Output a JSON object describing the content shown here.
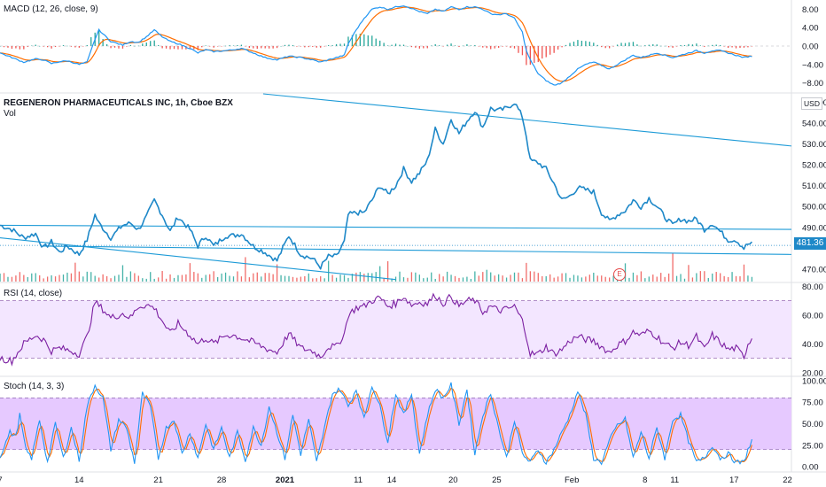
{
  "macd": {
    "label": "MACD (12, 26, close, 9)",
    "ticks": [
      {
        "v": 8,
        "t": "8.00"
      },
      {
        "v": 4,
        "t": "4.00"
      },
      {
        "v": 0,
        "t": "0.00"
      },
      {
        "v": -4,
        "t": "−4.00"
      },
      {
        "v": -8,
        "t": "−8.00"
      }
    ],
    "range": [
      -10,
      10
    ]
  },
  "price": {
    "title": "REGENERON PHARMACEUTICALS INC, 1h, Cboe BZX",
    "vol_label": "Vol",
    "currency": "USD",
    "last_price": "481.36",
    "earnings_marker": "E",
    "ticks": [
      {
        "v": 550,
        "t": "550.00"
      },
      {
        "v": 540,
        "t": "540.00"
      },
      {
        "v": 530,
        "t": "530.00"
      },
      {
        "v": 520,
        "t": "520.00"
      },
      {
        "v": 510,
        "t": "510.00"
      },
      {
        "v": 500,
        "t": "500.00"
      },
      {
        "v": 490,
        "t": "490.00"
      },
      {
        "v": 470,
        "t": "470.00"
      }
    ],
    "range": [
      464,
      554
    ]
  },
  "rsi": {
    "label": "RSI (14, close)",
    "ticks": [
      {
        "v": 80,
        "t": "80.00"
      },
      {
        "v": 60,
        "t": "60.00"
      },
      {
        "v": 40,
        "t": "40.00"
      },
      {
        "v": 20,
        "t": "20.00"
      }
    ],
    "range": [
      18,
      82
    ],
    "band": [
      30,
      70
    ]
  },
  "stoch": {
    "label": "Stoch (14, 3, 3)",
    "ticks": [
      {
        "v": 100,
        "t": "100.00"
      },
      {
        "v": 75,
        "t": "75.00"
      },
      {
        "v": 50,
        "t": "50.00"
      },
      {
        "v": 25,
        "t": "25.00"
      },
      {
        "v": 0,
        "t": "0.00"
      }
    ],
    "range": [
      -6,
      104
    ],
    "band": [
      20,
      80
    ]
  },
  "x_axis": {
    "labels": [
      {
        "t": "7",
        "i": 0
      },
      {
        "t": "14",
        "i": 40
      },
      {
        "t": "21",
        "i": 80
      },
      {
        "t": "28",
        "i": 112
      },
      {
        "t": "2021",
        "i": 144,
        "bold": true
      },
      {
        "t": "11",
        "i": 181
      },
      {
        "t": "14",
        "i": 198
      },
      {
        "t": "20",
        "i": 229
      },
      {
        "t": "25",
        "i": 251
      },
      {
        "t": "Feb",
        "i": 289
      },
      {
        "t": "8",
        "i": 326
      },
      {
        "t": "11",
        "i": 341
      },
      {
        "t": "17",
        "i": 371
      },
      {
        "t": "22",
        "i": 398
      }
    ]
  },
  "colors": {
    "price_line": "#1e88c8",
    "trend_line": "#1e9bd7",
    "macd_line": "#2196f3",
    "signal_line": "#ff6d00",
    "hist_pos": "#26a69a",
    "hist_neg": "#ef5350",
    "rsi_line": "#7b1fa2",
    "rsi_band": "#f3e6ff",
    "stoch_k": "#2196f3",
    "stoch_d": "#ff6d00",
    "stoch_band": "#e6c9ff",
    "vol_up": "#26a69a",
    "vol_down": "#ef5350"
  },
  "chart_data": {
    "type": "line",
    "x_range": [
      0,
      380
    ],
    "price_anchors": [
      [
        0,
        491
      ],
      [
        6,
        489
      ],
      [
        12,
        485
      ],
      [
        18,
        487
      ],
      [
        22,
        480
      ],
      [
        26,
        483
      ],
      [
        30,
        478
      ],
      [
        34,
        481
      ],
      [
        40,
        477
      ],
      [
        44,
        484
      ],
      [
        48,
        496
      ],
      [
        50,
        492
      ],
      [
        56,
        485
      ],
      [
        62,
        491
      ],
      [
        66,
        492
      ],
      [
        70,
        489
      ],
      [
        74,
        495
      ],
      [
        78,
        503
      ],
      [
        82,
        496
      ],
      [
        86,
        488
      ],
      [
        90,
        495
      ],
      [
        96,
        489
      ],
      [
        100,
        481
      ],
      [
        104,
        486
      ],
      [
        108,
        481
      ],
      [
        114,
        486
      ],
      [
        118,
        486
      ],
      [
        122,
        487
      ],
      [
        128,
        481
      ],
      [
        134,
        478
      ],
      [
        140,
        474
      ],
      [
        146,
        486
      ],
      [
        152,
        477
      ],
      [
        158,
        475
      ],
      [
        162,
        471
      ],
      [
        166,
        476
      ],
      [
        170,
        476
      ],
      [
        174,
        483
      ],
      [
        176,
        496
      ],
      [
        180,
        497
      ],
      [
        184,
        497
      ],
      [
        188,
        503
      ],
      [
        192,
        510
      ],
      [
        196,
        506
      ],
      [
        200,
        510
      ],
      [
        204,
        518
      ],
      [
        208,
        512
      ],
      [
        212,
        516
      ],
      [
        216,
        522
      ],
      [
        220,
        537
      ],
      [
        224,
        530
      ],
      [
        228,
        542
      ],
      [
        232,
        535
      ],
      [
        236,
        541
      ],
      [
        240,
        546
      ],
      [
        244,
        538
      ],
      [
        248,
        547
      ],
      [
        252,
        546
      ],
      [
        256,
        547
      ],
      [
        260,
        550
      ],
      [
        264,
        543
      ],
      [
        266,
        534
      ],
      [
        268,
        522
      ],
      [
        272,
        521
      ],
      [
        276,
        518
      ],
      [
        280,
        511
      ],
      [
        284,
        503
      ],
      [
        288,
        505
      ],
      [
        292,
        509
      ],
      [
        296,
        508
      ],
      [
        300,
        507
      ],
      [
        304,
        497
      ],
      [
        308,
        493
      ],
      [
        312,
        496
      ],
      [
        316,
        498
      ],
      [
        320,
        503
      ],
      [
        324,
        500
      ],
      [
        328,
        504
      ],
      [
        332,
        500
      ],
      [
        336,
        495
      ],
      [
        340,
        491
      ],
      [
        344,
        494
      ],
      [
        348,
        493
      ],
      [
        352,
        494
      ],
      [
        356,
        489
      ],
      [
        360,
        492
      ],
      [
        364,
        488
      ],
      [
        368,
        484
      ],
      [
        372,
        484
      ],
      [
        376,
        480
      ],
      [
        378,
        482
      ],
      [
        380,
        482
      ]
    ],
    "rsi_anchors": [
      [
        0,
        30
      ],
      [
        6,
        28
      ],
      [
        12,
        40
      ],
      [
        18,
        46
      ],
      [
        22,
        43
      ],
      [
        26,
        35
      ],
      [
        30,
        37
      ],
      [
        36,
        35
      ],
      [
        40,
        33
      ],
      [
        44,
        45
      ],
      [
        48,
        69
      ],
      [
        52,
        64
      ],
      [
        56,
        58
      ],
      [
        62,
        61
      ],
      [
        66,
        58
      ],
      [
        70,
        66
      ],
      [
        74,
        67
      ],
      [
        78,
        65
      ],
      [
        82,
        56
      ],
      [
        86,
        47
      ],
      [
        90,
        54
      ],
      [
        96,
        46
      ],
      [
        100,
        40
      ],
      [
        104,
        44
      ],
      [
        108,
        40
      ],
      [
        114,
        46
      ],
      [
        118,
        46
      ],
      [
        122,
        44
      ],
      [
        128,
        41
      ],
      [
        134,
        37
      ],
      [
        140,
        34
      ],
      [
        146,
        47
      ],
      [
        152,
        37
      ],
      [
        158,
        35
      ],
      [
        162,
        31
      ],
      [
        166,
        38
      ],
      [
        170,
        38
      ],
      [
        174,
        47
      ],
      [
        176,
        60
      ],
      [
        180,
        65
      ],
      [
        184,
        66
      ],
      [
        188,
        70
      ],
      [
        192,
        72
      ],
      [
        196,
        66
      ],
      [
        200,
        68
      ],
      [
        204,
        73
      ],
      [
        208,
        67
      ],
      [
        212,
        69
      ],
      [
        216,
        68
      ],
      [
        220,
        74
      ],
      [
        224,
        68
      ],
      [
        228,
        73
      ],
      [
        232,
        66
      ],
      [
        236,
        70
      ],
      [
        240,
        70
      ],
      [
        244,
        62
      ],
      [
        248,
        66
      ],
      [
        252,
        63
      ],
      [
        256,
        64
      ],
      [
        260,
        66
      ],
      [
        264,
        56
      ],
      [
        266,
        46
      ],
      [
        268,
        33
      ],
      [
        272,
        33
      ],
      [
        276,
        38
      ],
      [
        280,
        33
      ],
      [
        284,
        36
      ],
      [
        288,
        42
      ],
      [
        292,
        45
      ],
      [
        296,
        43
      ],
      [
        300,
        42
      ],
      [
        304,
        38
      ],
      [
        308,
        34
      ],
      [
        312,
        39
      ],
      [
        316,
        42
      ],
      [
        320,
        48
      ],
      [
        324,
        46
      ],
      [
        328,
        49
      ],
      [
        332,
        45
      ],
      [
        336,
        40
      ],
      [
        340,
        37
      ],
      [
        344,
        41
      ],
      [
        348,
        39
      ],
      [
        352,
        45
      ],
      [
        356,
        36
      ],
      [
        360,
        46
      ],
      [
        364,
        41
      ],
      [
        368,
        36
      ],
      [
        372,
        37
      ],
      [
        376,
        31
      ],
      [
        378,
        40
      ],
      [
        380,
        44
      ]
    ],
    "stoch_k_anchors": [
      [
        0,
        12
      ],
      [
        5,
        40
      ],
      [
        8,
        35
      ],
      [
        10,
        60
      ],
      [
        13,
        20
      ],
      [
        16,
        10
      ],
      [
        20,
        55
      ],
      [
        24,
        5
      ],
      [
        28,
        50
      ],
      [
        32,
        10
      ],
      [
        36,
        45
      ],
      [
        40,
        8
      ],
      [
        44,
        70
      ],
      [
        48,
        95
      ],
      [
        52,
        80
      ],
      [
        56,
        20
      ],
      [
        60,
        55
      ],
      [
        64,
        45
      ],
      [
        68,
        5
      ],
      [
        72,
        85
      ],
      [
        76,
        70
      ],
      [
        80,
        10
      ],
      [
        84,
        45
      ],
      [
        88,
        55
      ],
      [
        92,
        15
      ],
      [
        96,
        40
      ],
      [
        100,
        10
      ],
      [
        104,
        50
      ],
      [
        108,
        20
      ],
      [
        112,
        45
      ],
      [
        116,
        10
      ],
      [
        120,
        40
      ],
      [
        124,
        8
      ],
      [
        128,
        45
      ],
      [
        132,
        25
      ],
      [
        136,
        70
      ],
      [
        140,
        40
      ],
      [
        144,
        10
      ],
      [
        148,
        60
      ],
      [
        152,
        15
      ],
      [
        156,
        55
      ],
      [
        160,
        5
      ],
      [
        164,
        45
      ],
      [
        168,
        85
      ],
      [
        172,
        90
      ],
      [
        176,
        70
      ],
      [
        180,
        90
      ],
      [
        184,
        55
      ],
      [
        188,
        95
      ],
      [
        192,
        70
      ],
      [
        196,
        30
      ],
      [
        200,
        85
      ],
      [
        204,
        60
      ],
      [
        208,
        85
      ],
      [
        212,
        15
      ],
      [
        216,
        60
      ],
      [
        220,
        90
      ],
      [
        224,
        80
      ],
      [
        228,
        95
      ],
      [
        232,
        50
      ],
      [
        236,
        90
      ],
      [
        240,
        15
      ],
      [
        244,
        60
      ],
      [
        248,
        85
      ],
      [
        252,
        45
      ],
      [
        256,
        10
      ],
      [
        260,
        55
      ],
      [
        264,
        15
      ],
      [
        268,
        5
      ],
      [
        272,
        20
      ],
      [
        276,
        5
      ],
      [
        280,
        20
      ],
      [
        284,
        40
      ],
      [
        288,
        60
      ],
      [
        292,
        88
      ],
      [
        296,
        60
      ],
      [
        300,
        10
      ],
      [
        304,
        5
      ],
      [
        308,
        30
      ],
      [
        312,
        48
      ],
      [
        316,
        55
      ],
      [
        320,
        10
      ],
      [
        324,
        40
      ],
      [
        328,
        10
      ],
      [
        332,
        45
      ],
      [
        336,
        10
      ],
      [
        340,
        55
      ],
      [
        344,
        60
      ],
      [
        348,
        30
      ],
      [
        352,
        5
      ],
      [
        356,
        10
      ],
      [
        360,
        25
      ],
      [
        364,
        10
      ],
      [
        368,
        15
      ],
      [
        372,
        5
      ],
      [
        376,
        5
      ],
      [
        378,
        20
      ],
      [
        380,
        30
      ]
    ],
    "macd_anchors": [
      [
        0,
        -1.5
      ],
      [
        6,
        -2.5
      ],
      [
        12,
        -3.5
      ],
      [
        18,
        -2.8
      ],
      [
        22,
        -3.0
      ],
      [
        26,
        -3.8
      ],
      [
        30,
        -3.4
      ],
      [
        34,
        -3.2
      ],
      [
        40,
        -4.0
      ],
      [
        44,
        -3.5
      ],
      [
        48,
        1.5
      ],
      [
        50,
        3.5
      ],
      [
        56,
        1.0
      ],
      [
        62,
        0.2
      ],
      [
        66,
        1.0
      ],
      [
        70,
        0.8
      ],
      [
        74,
        2.0
      ],
      [
        78,
        3.5
      ],
      [
        82,
        2.0
      ],
      [
        86,
        1.0
      ],
      [
        90,
        0.5
      ],
      [
        96,
        -0.5
      ],
      [
        100,
        -1.5
      ],
      [
        104,
        -0.8
      ],
      [
        108,
        -1.2
      ],
      [
        114,
        -1.0
      ],
      [
        118,
        -0.8
      ],
      [
        122,
        -0.5
      ],
      [
        128,
        -1.5
      ],
      [
        134,
        -2.5
      ],
      [
        140,
        -3.0
      ],
      [
        146,
        -2.2
      ],
      [
        152,
        -2.5
      ],
      [
        158,
        -3.0
      ],
      [
        162,
        -3.5
      ],
      [
        166,
        -3.0
      ],
      [
        170,
        -2.5
      ],
      [
        174,
        -2.0
      ],
      [
        176,
        0.5
      ],
      [
        180,
        3.5
      ],
      [
        184,
        6.0
      ],
      [
        188,
        8.0
      ],
      [
        192,
        8.5
      ],
      [
        196,
        8.0
      ],
      [
        200,
        8.5
      ],
      [
        204,
        8.8
      ],
      [
        208,
        8.2
      ],
      [
        212,
        7.5
      ],
      [
        216,
        7.0
      ],
      [
        220,
        8.0
      ],
      [
        224,
        7.5
      ],
      [
        228,
        8.5
      ],
      [
        232,
        8.0
      ],
      [
        236,
        8.5
      ],
      [
        240,
        8.5
      ],
      [
        244,
        8.0
      ],
      [
        248,
        7.0
      ],
      [
        252,
        6.8
      ],
      [
        256,
        7.0
      ],
      [
        260,
        6.0
      ],
      [
        264,
        3.0
      ],
      [
        266,
        -1.0
      ],
      [
        268,
        -3.0
      ],
      [
        272,
        -6.0
      ],
      [
        276,
        -7.5
      ],
      [
        280,
        -8.5
      ],
      [
        284,
        -8.0
      ],
      [
        288,
        -6.5
      ],
      [
        292,
        -5.0
      ],
      [
        296,
        -4.0
      ],
      [
        300,
        -3.5
      ],
      [
        304,
        -4.2
      ],
      [
        308,
        -5.0
      ],
      [
        312,
        -4.0
      ],
      [
        316,
        -3.0
      ],
      [
        320,
        -2.0
      ],
      [
        324,
        -2.5
      ],
      [
        328,
        -2.0
      ],
      [
        332,
        -1.5
      ],
      [
        336,
        -2.0
      ],
      [
        340,
        -2.5
      ],
      [
        344,
        -2.0
      ],
      [
        348,
        -1.5
      ],
      [
        352,
        -1.0
      ],
      [
        356,
        -1.5
      ],
      [
        360,
        -1.0
      ],
      [
        364,
        -1.0
      ],
      [
        368,
        -1.5
      ],
      [
        372,
        -2.0
      ],
      [
        376,
        -2.5
      ],
      [
        378,
        -2.3
      ],
      [
        380,
        -2.2
      ]
    ],
    "trendlines": [
      {
        "x1": 133,
        "y1": 554,
        "x2": 400,
        "y2": 529
      },
      {
        "x1": 0,
        "y1": 485,
        "x2": 200,
        "y2": 465
      },
      {
        "x1": 0,
        "y1": 491,
        "x2": 400,
        "y2": 489
      },
      {
        "x1": 22,
        "y1": 481,
        "x2": 400,
        "y2": 477
      }
    ]
  }
}
